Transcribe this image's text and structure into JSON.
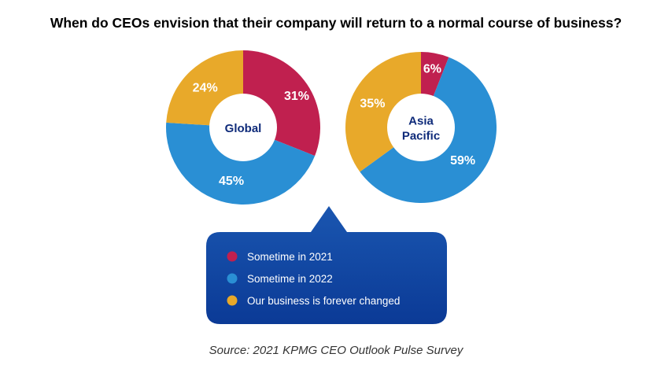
{
  "chart_data": [
    {
      "type": "pie",
      "variant": "donut",
      "center_label": "Global",
      "categories": [
        "Sometime in 2021",
        "Sometime in 2022",
        "Our business is forever changed"
      ],
      "values": [
        31,
        45,
        24
      ],
      "labels": [
        "31%",
        "45%",
        "24%"
      ]
    },
    {
      "type": "pie",
      "variant": "donut",
      "center_label": [
        "Asia",
        "Pacific"
      ],
      "categories": [
        "Sometime in 2021",
        "Sometime in 2022",
        "Our business is forever changed"
      ],
      "values": [
        6,
        59,
        35
      ],
      "labels": [
        "6%",
        "59%",
        "35%"
      ]
    }
  ],
  "title": "When do CEOs envision that their company will return to a normal course of business?",
  "legend": {
    "placement": "bottom-center",
    "items": [
      {
        "label": "Sometime in 2021",
        "color": "#c0204f"
      },
      {
        "label": "Sometime in 2022",
        "color": "#2a8fd4"
      },
      {
        "label": "Our business is forever changed",
        "color": "#e8a92a"
      }
    ]
  },
  "colors": {
    "series": [
      "#c0204f",
      "#2a8fd4",
      "#e8a92a"
    ],
    "center_text": "#0f2b7a",
    "callout_top": "#1a56b0",
    "callout_bottom": "#0b3a96"
  },
  "source": "Source: 2021 KPMG CEO Outlook Pulse Survey"
}
